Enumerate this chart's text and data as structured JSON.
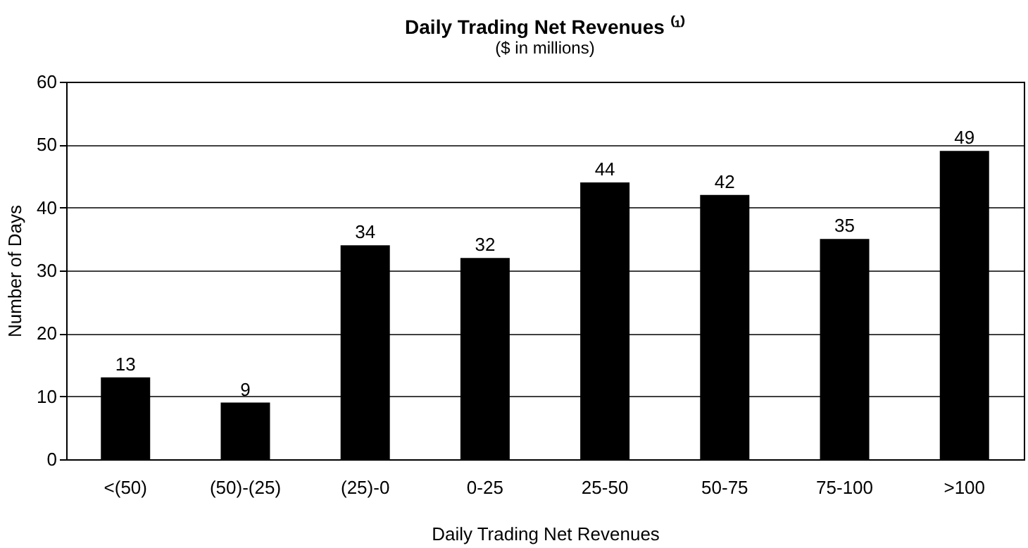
{
  "chart_data": {
    "type": "bar",
    "title": "Daily Trading Net Revenues ⁽¹⁾",
    "subtitle": "($ in millions)",
    "xlabel": "Daily Trading Net Revenues",
    "ylabel": "Number of Days",
    "categories": [
      "<(50)",
      "(50)-(25)",
      "(25)-0",
      "0-25",
      "25-50",
      "50-75",
      "75-100",
      ">100"
    ],
    "values": [
      13,
      9,
      34,
      32,
      44,
      42,
      35,
      49
    ],
    "color": "#000000",
    "ylim": [
      0,
      60
    ],
    "yticks": [
      0,
      10,
      20,
      30,
      40,
      50,
      60
    ],
    "grid": "y",
    "data_labels": true
  }
}
